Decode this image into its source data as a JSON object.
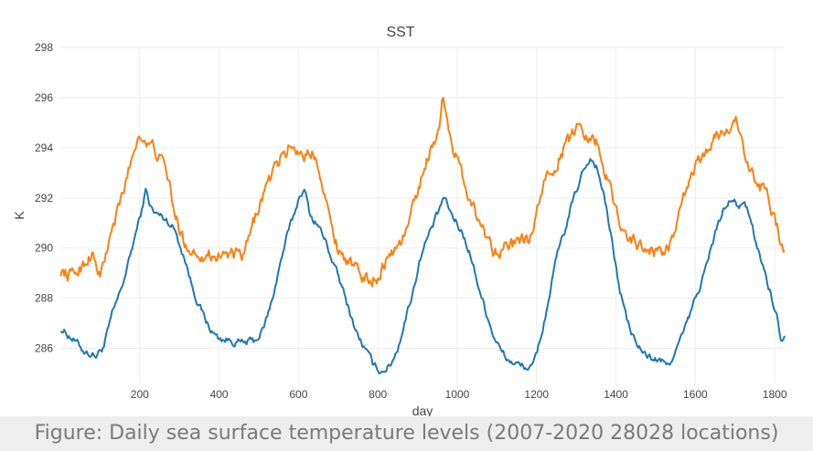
{
  "caption": "Figure: Daily sea surface temperature levels (2007-2020 28028 locations)",
  "colors": {
    "series_1": "#1f77b4",
    "series_2": "#ff7f0e",
    "grid": "#eeeeee",
    "text": "#444444"
  },
  "chart_data": {
    "type": "line",
    "title": "SST",
    "xlabel": "day",
    "ylabel": "K",
    "xlim": [
      0,
      1825
    ],
    "ylim": [
      284.6,
      298
    ],
    "xticks": [
      200,
      400,
      600,
      800,
      1000,
      1200,
      1400,
      1600,
      1800
    ],
    "yticks": [
      286,
      288,
      290,
      292,
      294,
      296,
      298
    ],
    "grid": true,
    "legend": "none",
    "series": [
      {
        "points": [
          [
            1,
            286.8
          ],
          [
            30,
            286.4
          ],
          [
            60,
            285.9
          ],
          [
            90,
            285.7
          ],
          [
            110,
            286.1
          ],
          [
            130,
            287.3
          ],
          [
            150,
            288.2
          ],
          [
            170,
            289.3
          ],
          [
            190,
            290.6
          ],
          [
            205,
            291.5
          ],
          [
            215,
            292.3
          ],
          [
            225,
            291.8
          ],
          [
            235,
            291.4
          ],
          [
            250,
            291.3
          ],
          [
            270,
            291.1
          ],
          [
            290,
            290.7
          ],
          [
            300,
            290.2
          ],
          [
            315,
            289.5
          ],
          [
            330,
            288.6
          ],
          [
            350,
            287.7
          ],
          [
            370,
            287.0
          ],
          [
            385,
            286.6
          ],
          [
            400,
            286.4
          ],
          [
            430,
            286.3
          ],
          [
            460,
            286.2
          ],
          [
            490,
            286.3
          ],
          [
            510,
            286.7
          ],
          [
            530,
            287.7
          ],
          [
            550,
            289.1
          ],
          [
            570,
            290.4
          ],
          [
            590,
            291.4
          ],
          [
            605,
            292.2
          ],
          [
            615,
            292.3
          ],
          [
            630,
            291.3
          ],
          [
            650,
            290.9
          ],
          [
            670,
            290.2
          ],
          [
            690,
            289.3
          ],
          [
            710,
            288.4
          ],
          [
            730,
            287.4
          ],
          [
            750,
            286.5
          ],
          [
            770,
            285.9
          ],
          [
            790,
            285.3
          ],
          [
            810,
            285.1
          ],
          [
            830,
            285.3
          ],
          [
            850,
            286.0
          ],
          [
            870,
            287.2
          ],
          [
            890,
            288.4
          ],
          [
            910,
            289.8
          ],
          [
            930,
            290.6
          ],
          [
            950,
            291.3
          ],
          [
            965,
            292.0
          ],
          [
            975,
            291.7
          ],
          [
            990,
            291.2
          ],
          [
            1010,
            290.7
          ],
          [
            1030,
            289.9
          ],
          [
            1050,
            288.7
          ],
          [
            1070,
            287.6
          ],
          [
            1090,
            286.6
          ],
          [
            1110,
            285.9
          ],
          [
            1130,
            285.5
          ],
          [
            1160,
            285.3
          ],
          [
            1190,
            285.2
          ],
          [
            1210,
            286.4
          ],
          [
            1230,
            287.9
          ],
          [
            1250,
            289.6
          ],
          [
            1270,
            290.6
          ],
          [
            1290,
            291.8
          ],
          [
            1305,
            292.5
          ],
          [
            1320,
            293.2
          ],
          [
            1335,
            293.6
          ],
          [
            1350,
            293.3
          ],
          [
            1370,
            292.1
          ],
          [
            1390,
            290.2
          ],
          [
            1410,
            288.3
          ],
          [
            1430,
            287.0
          ],
          [
            1450,
            286.2
          ],
          [
            1470,
            285.8
          ],
          [
            1490,
            285.6
          ],
          [
            1510,
            285.5
          ],
          [
            1530,
            285.3
          ],
          [
            1550,
            285.9
          ],
          [
            1570,
            286.6
          ],
          [
            1590,
            287.5
          ],
          [
            1610,
            288.4
          ],
          [
            1630,
            289.4
          ],
          [
            1650,
            290.6
          ],
          [
            1670,
            291.5
          ],
          [
            1690,
            291.9
          ],
          [
            1710,
            291.7
          ],
          [
            1730,
            291.6
          ],
          [
            1750,
            290.4
          ],
          [
            1770,
            289.3
          ],
          [
            1790,
            288.2
          ],
          [
            1805,
            287.3
          ],
          [
            1815,
            286.4
          ],
          [
            1825,
            286.5
          ]
        ]
      },
      {
        "points": [
          [
            1,
            289.1
          ],
          [
            30,
            288.9
          ],
          [
            60,
            289.4
          ],
          [
            80,
            289.8
          ],
          [
            100,
            288.8
          ],
          [
            120,
            290.1
          ],
          [
            140,
            291.2
          ],
          [
            160,
            292.3
          ],
          [
            180,
            293.6
          ],
          [
            195,
            294.4
          ],
          [
            205,
            294.6
          ],
          [
            220,
            294.1
          ],
          [
            235,
            294.0
          ],
          [
            250,
            293.6
          ],
          [
            270,
            292.9
          ],
          [
            290,
            291.2
          ],
          [
            310,
            290.3
          ],
          [
            330,
            289.9
          ],
          [
            350,
            289.8
          ],
          [
            380,
            289.7
          ],
          [
            410,
            289.8
          ],
          [
            440,
            289.7
          ],
          [
            460,
            289.6
          ],
          [
            480,
            290.6
          ],
          [
            500,
            291.7
          ],
          [
            520,
            292.5
          ],
          [
            540,
            293.1
          ],
          [
            560,
            293.7
          ],
          [
            580,
            294.1
          ],
          [
            600,
            293.9
          ],
          [
            620,
            293.7
          ],
          [
            640,
            293.8
          ],
          [
            660,
            292.8
          ],
          [
            680,
            291.0
          ],
          [
            700,
            290.0
          ],
          [
            720,
            289.6
          ],
          [
            740,
            289.2
          ],
          [
            760,
            288.9
          ],
          [
            780,
            288.7
          ],
          [
            800,
            288.9
          ],
          [
            820,
            289.5
          ],
          [
            840,
            289.9
          ],
          [
            860,
            290.3
          ],
          [
            880,
            291.1
          ],
          [
            900,
            292.3
          ],
          [
            920,
            293.4
          ],
          [
            940,
            294.2
          ],
          [
            955,
            294.9
          ],
          [
            965,
            296.1
          ],
          [
            975,
            295.2
          ],
          [
            990,
            294.0
          ],
          [
            1010,
            293.0
          ],
          [
            1030,
            292.1
          ],
          [
            1050,
            291.3
          ],
          [
            1070,
            290.6
          ],
          [
            1090,
            290.0
          ],
          [
            1110,
            290.0
          ],
          [
            1130,
            290.1
          ],
          [
            1160,
            290.2
          ],
          [
            1190,
            290.4
          ],
          [
            1210,
            292.2
          ],
          [
            1230,
            293.0
          ],
          [
            1250,
            293.4
          ],
          [
            1270,
            294.0
          ],
          [
            1290,
            294.5
          ],
          [
            1310,
            295.0
          ],
          [
            1330,
            294.5
          ],
          [
            1350,
            294.3
          ],
          [
            1370,
            293.2
          ],
          [
            1390,
            292.1
          ],
          [
            1410,
            291.1
          ],
          [
            1430,
            290.5
          ],
          [
            1450,
            290.2
          ],
          [
            1470,
            290.0
          ],
          [
            1490,
            289.9
          ],
          [
            1510,
            289.8
          ],
          [
            1530,
            290.0
          ],
          [
            1550,
            290.6
          ],
          [
            1570,
            291.9
          ],
          [
            1590,
            292.9
          ],
          [
            1610,
            293.5
          ],
          [
            1630,
            294.0
          ],
          [
            1650,
            294.4
          ],
          [
            1670,
            294.6
          ],
          [
            1690,
            295.0
          ],
          [
            1705,
            295.1
          ],
          [
            1720,
            293.9
          ],
          [
            1740,
            292.9
          ],
          [
            1760,
            292.5
          ],
          [
            1780,
            292.3
          ],
          [
            1800,
            291.2
          ],
          [
            1815,
            290.3
          ],
          [
            1825,
            289.9
          ]
        ]
      }
    ]
  }
}
